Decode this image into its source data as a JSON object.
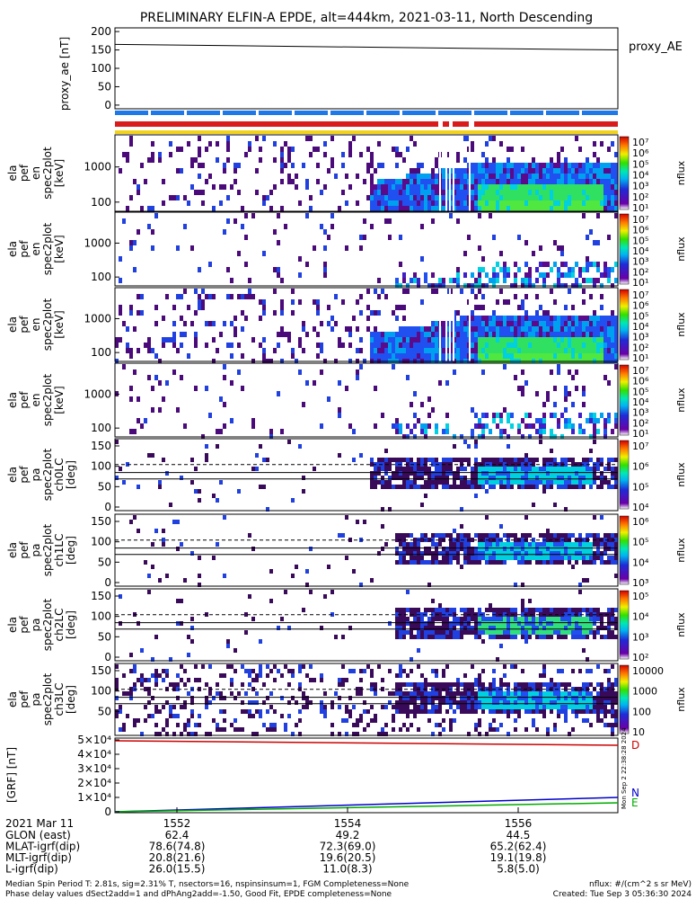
{
  "title": "PRELIMINARY ELFIN-A EPDE, alt=444km, 2021-03-11, North Descending",
  "chart_data": [
    {
      "type": "line",
      "panel": "proxy_ae",
      "ylabel": "proxy_ae [nT]",
      "legend": "proxy_AE",
      "ylim": [
        -10,
        210
      ],
      "yticks": [
        "200",
        "150",
        "100",
        "50",
        "0"
      ],
      "x": [
        1551.4,
        1557.2
      ],
      "values": [
        165,
        150
      ]
    },
    {
      "type": "bar",
      "panel": "status bars",
      "bars": [
        {
          "name": "blue",
          "color": "#1f78e8"
        },
        {
          "name": "red",
          "color": "#d81c1c"
        },
        {
          "name": "yellow",
          "color": "#f2d21b"
        }
      ]
    },
    {
      "type": "heatmap",
      "panel": "spec2plot energy 1",
      "ylabel": "ela pef en spec2plot [keV]",
      "yticks": [
        "1000",
        "100"
      ],
      "colorbar": {
        "label": "nflux",
        "ticks": [
          "10⁷",
          "10⁶",
          "10⁵",
          "10⁴",
          "10³",
          "10²",
          "10¹"
        ]
      }
    },
    {
      "type": "heatmap",
      "panel": "spec2plot energy 2",
      "ylabel": "ela pef en spec2plot [keV]",
      "yticks": [
        "1000",
        "100"
      ],
      "colorbar": {
        "label": "nflux",
        "ticks": [
          "10⁷",
          "10⁶",
          "10⁵",
          "10⁴",
          "10³",
          "10²",
          "10¹"
        ]
      }
    },
    {
      "type": "heatmap",
      "panel": "spec2plot energy 3",
      "ylabel": "ela pef en spec2plot [keV]",
      "yticks": [
        "1000",
        "100"
      ],
      "colorbar": {
        "label": "nflux",
        "ticks": [
          "10⁷",
          "10⁶",
          "10⁵",
          "10⁴",
          "10³",
          "10²",
          "10¹"
        ]
      }
    },
    {
      "type": "heatmap",
      "panel": "spec2plot energy 4",
      "ylabel": "ela pef en spec2plot [keV]",
      "yticks": [
        "1000",
        "100"
      ],
      "colorbar": {
        "label": "nflux",
        "ticks": [
          "10⁷",
          "10⁶",
          "10⁵",
          "10⁴",
          "10³",
          "10²",
          "10¹"
        ]
      }
    },
    {
      "type": "heatmap",
      "panel": "pa ch0LC",
      "ylabel": "ela pef pa spec2plot ch0LC [deg]",
      "yticks": [
        "150",
        "100",
        "50",
        "0"
      ],
      "colorbar": {
        "label": "nflux",
        "ticks": [
          "10⁷",
          "10⁶",
          "10⁵",
          "10⁴"
        ]
      }
    },
    {
      "type": "heatmap",
      "panel": "pa ch1LC",
      "ylabel": "ela pef pa spec2plot ch1LC [deg]",
      "yticks": [
        "150",
        "100",
        "50",
        "0"
      ],
      "colorbar": {
        "label": "nflux",
        "ticks": [
          "10⁶",
          "10⁵",
          "10⁴",
          "10³"
        ]
      }
    },
    {
      "type": "heatmap",
      "panel": "pa ch2LC",
      "ylabel": "ela pef pa spec2plot ch2LC [deg]",
      "yticks": [
        "150",
        "100",
        "50",
        "0"
      ],
      "colorbar": {
        "label": "nflux",
        "ticks": [
          "10⁵",
          "10⁴",
          "10³",
          "10²"
        ]
      }
    },
    {
      "type": "heatmap",
      "panel": "pa ch3LC",
      "ylabel": "ela pef pa spec2plot ch3LC [deg]",
      "yticks": [
        "150",
        "100",
        "50"
      ],
      "colorbar": {
        "label": "nflux",
        "ticks": [
          "10000",
          "1000",
          "100",
          "10"
        ]
      }
    },
    {
      "type": "line",
      "panel": "B field",
      "ylabel": "[GRF] [nT]",
      "yticks": [
        "5×10⁴",
        "4×10⁴",
        "3×10⁴",
        "2×10⁴",
        "1×10⁴",
        "0"
      ],
      "ylim": [
        0,
        50000
      ],
      "series": [
        {
          "name": "D",
          "color": "#cc0000",
          "values": [
            49500,
            46000
          ]
        },
        {
          "name": "N",
          "color": "#0000cc",
          "values": [
            0,
            8000
          ]
        },
        {
          "name": "E",
          "color": "#00aa00",
          "values": [
            0,
            5000
          ]
        }
      ]
    }
  ],
  "side_timestamp": "Mon Sep  2 22:38:28 2024",
  "xaxis": {
    "date": "2021 Mar 11",
    "ticks": [
      "1552",
      "1554",
      "1556"
    ],
    "rows": [
      {
        "label": "GLON (east)",
        "values": [
          "62.4",
          "49.2",
          "44.5"
        ]
      },
      {
        "label": "MLAT-igrf(dip)",
        "values": [
          "78.6(74.8)",
          "72.3(69.0)",
          "65.2(62.4)"
        ]
      },
      {
        "label": "MLT-igrf(dip)",
        "values": [
          "20.8(21.6)",
          "19.6(20.5)",
          "19.1(19.8)"
        ]
      },
      {
        "label": "L-igrf(dip)",
        "values": [
          "26.0(15.5)",
          "11.0(8.3)",
          "5.8(5.0)"
        ]
      }
    ]
  },
  "footer": {
    "line1": "Median Spin Period T: 2.81s, sig=2.31% T, nsectors=16, nspinsinsum=1, FGM Completeness=None",
    "line2": "Phase delay values dSect2add=1 and dPhAng2add=-1.50, Good Fit, EPDE completeness=None",
    "right1": "nflux: #/(cm^2 s sr MeV)",
    "right2": "Created: Tue Sep  3 05:36:30 2024"
  }
}
